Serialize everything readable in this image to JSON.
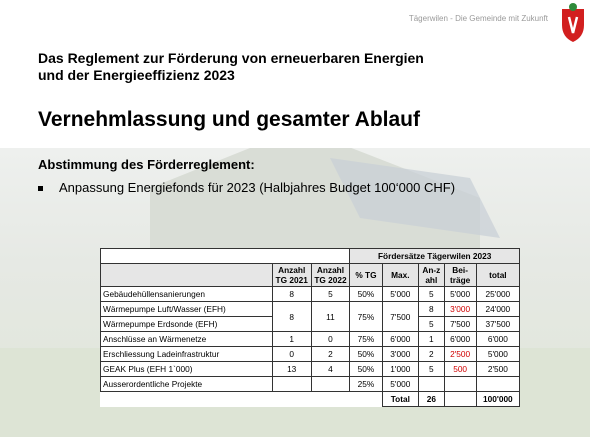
{
  "header": {
    "tagline": "Tägerwilen - Die Gemeinde mit Zukunft",
    "title_lines": [
      "Das Reglement zur Förderung von erneuerbaren Energien",
      "und der Energieeffizienz 2023"
    ]
  },
  "heading": "Vernehmlassung und gesamter Ablauf",
  "subheading": "Abstimmung des Förderreglement:",
  "bullets": [
    "Anpassung Energiefonds für 2023 (Halbjahres Budget 100‘000 CHF)"
  ],
  "table": {
    "group_header": "Fördersätze Tägerwilen 2023",
    "columns": [
      "Anzahl TG 2021",
      "Anzahl TG 2022",
      "% TG",
      "Max.",
      "An-zahl",
      "Bei-träge",
      "total"
    ],
    "rows": [
      {
        "label": "Gebäudehüllensanierungen",
        "tg2021": "8",
        "tg2022": "5",
        "pct": "50%",
        "max": "5'000",
        "count": "5",
        "amount": "5'000",
        "total": "25'000"
      },
      {
        "label": "Wärmepumpe Luft/Wasser (EFH)",
        "tg2021": "8",
        "tg2022": "11",
        "pct": "75%",
        "max": "7'500",
        "count": "8",
        "amount": "3'000",
        "total": "24'000"
      },
      {
        "label": "Wärmepumpe Erdsonde (EFH)",
        "count": "5",
        "amount": "7'500",
        "total": "37'500"
      },
      {
        "label": "Anschlüsse an Wärmenetze",
        "tg2021": "1",
        "tg2022": "0",
        "pct": "75%",
        "max": "6'000",
        "count": "1",
        "amount": "6'000",
        "total": "6'000"
      },
      {
        "label": "Erschliessung Ladeinfrastruktur",
        "tg2021": "0",
        "tg2022": "2",
        "pct": "50%",
        "max": "3'000",
        "count": "2",
        "amount": "2'500",
        "total": "5'000"
      },
      {
        "label": "GEAK Plus (EFH 1`000)",
        "tg2021": "13",
        "tg2022": "4",
        "pct": "50%",
        "max": "1'000",
        "count": "5",
        "amount": "500",
        "total": "2'500"
      },
      {
        "label": "Ausserordentliche Projekte",
        "pct": "25%",
        "max": "5'000"
      }
    ],
    "total": {
      "label": "Total",
      "count": "26",
      "sum": "100'000"
    }
  }
}
